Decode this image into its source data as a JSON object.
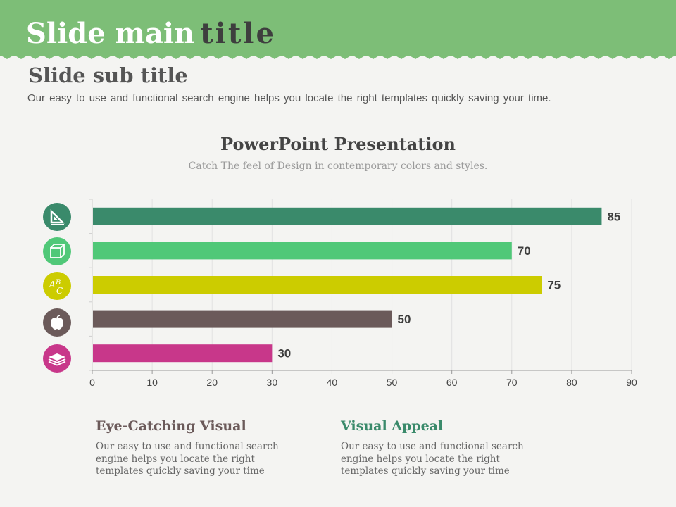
{
  "slide": {
    "title_main": "Slide main",
    "title_accent": "title",
    "subtitle": "Slide sub title",
    "description": "Our easy to use and functional search engine helps you locate the right templates quickly saving your time."
  },
  "colors": {
    "banner": "#7dbe77",
    "bars": [
      "#3a8a6b",
      "#50c878",
      "#cccc00",
      "#6b5a5a",
      "#c8378a"
    ]
  },
  "icons": [
    "ruler-triangle-icon",
    "cube-icon",
    "abc-letters-icon",
    "apple-icon",
    "book-stack-icon"
  ],
  "chart_data": {
    "type": "bar",
    "orientation": "horizontal",
    "title": "PowerPoint Presentation",
    "subtitle": "Catch The feel of Design in contemporary colors and styles.",
    "categories": [
      "",
      "",
      "",
      "",
      ""
    ],
    "values": [
      85,
      70,
      75,
      50,
      30
    ],
    "xlim": [
      0,
      90
    ],
    "xticks": [
      0,
      10,
      20,
      30,
      40,
      50,
      60,
      70,
      80,
      90
    ],
    "grid": true,
    "data_labels": true
  },
  "bottom": [
    {
      "heading": "Eye-Catching Visual",
      "color": "#6b5a5a",
      "text": "Our easy to use and functional search engine helps you locate the right templates quickly saving your time"
    },
    {
      "heading": "Visual Appeal",
      "color": "#3a8a6b",
      "text": "Our easy to use and functional search engine helps you locate the right templates quickly saving your time"
    }
  ]
}
